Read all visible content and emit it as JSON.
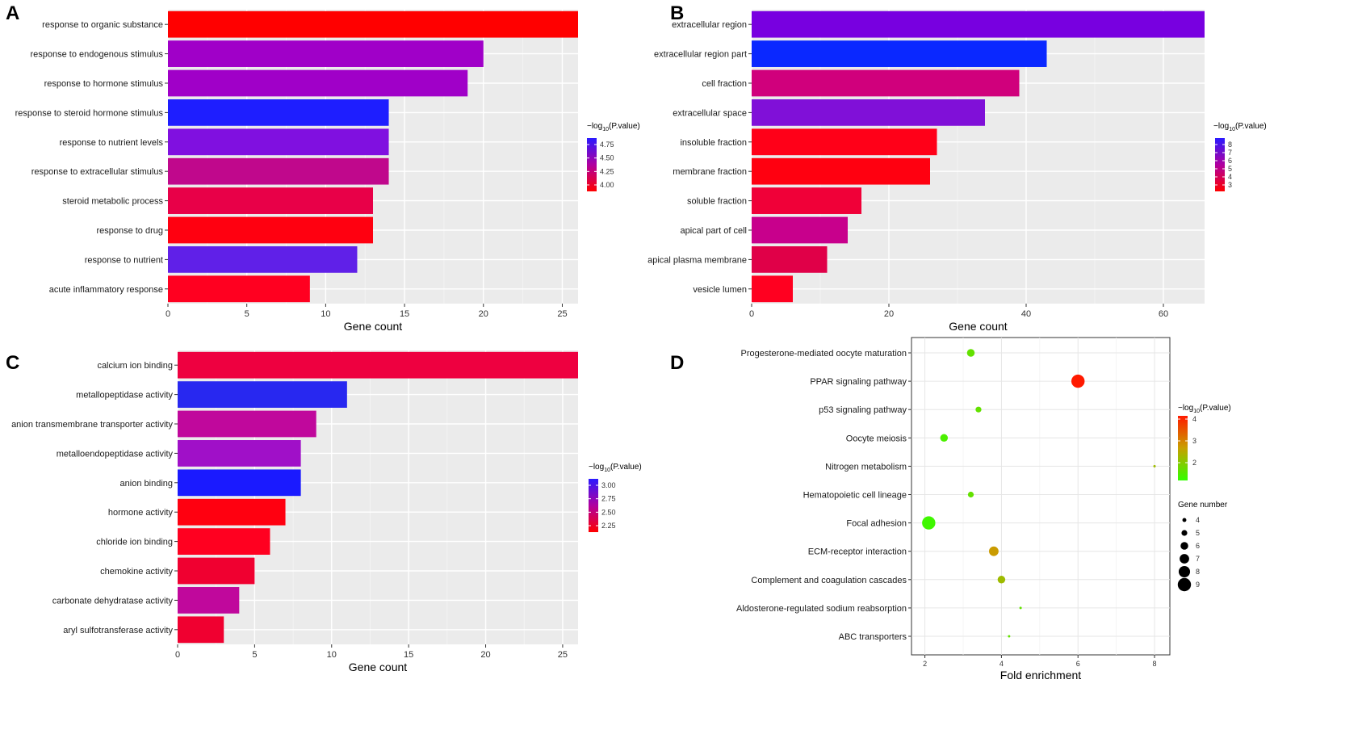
{
  "chart_data": [
    {
      "panel": "A",
      "type": "bar",
      "orientation": "horizontal",
      "categories": [
        "response to organic substance",
        "response to endogenous stimulus",
        "response to hormone stimulus",
        "response to steroid hormone stimulus",
        "response to nutrient levels",
        "response to extracellular stimulus",
        "steroid metabolic process",
        "response to drug",
        "response to nutrient",
        "acute inflammatory response"
      ],
      "values": [
        26,
        20,
        19,
        14,
        14,
        14,
        13,
        13,
        12,
        9
      ],
      "bar_colors": [
        "#ff0000",
        "#a000c8",
        "#a000c8",
        "#1e1eff",
        "#8010e0",
        "#c0088c",
        "#e80048",
        "#ff0010",
        "#6020e8",
        "#ff0020"
      ],
      "xlabel": "Gene count",
      "xticks": [
        0,
        5,
        10,
        15,
        20,
        25
      ],
      "xlim": [
        0,
        26
      ],
      "legend": {
        "title_prefix": "−log",
        "title_sub": "10",
        "title_suffix": "(P.value)",
        "ticks": [
          "4.75",
          "4.50",
          "4.25",
          "4.00"
        ],
        "low_color": "#ff0000",
        "high_color": "#2a1aff"
      }
    },
    {
      "panel": "B",
      "type": "bar",
      "orientation": "horizontal",
      "categories": [
        "extracellular region",
        "extracellular region part",
        "cell fraction",
        "extracellular space",
        "insoluble fraction",
        "membrane fraction",
        "soluble fraction",
        "apical part of cell",
        "apical plasma membrane",
        "vesicle lumen"
      ],
      "values": [
        66,
        43,
        39,
        34,
        27,
        26,
        16,
        14,
        11,
        6
      ],
      "bar_colors": [
        "#7800e0",
        "#0a28ff",
        "#d0007c",
        "#8010d8",
        "#ff0018",
        "#ff0010",
        "#f00038",
        "#c8008c",
        "#e00048",
        "#ff0020"
      ],
      "xlabel": "Gene count",
      "xticks": [
        0,
        20,
        40,
        60
      ],
      "xlim": [
        0,
        66
      ],
      "legend": {
        "title_prefix": "−log",
        "title_sub": "10",
        "title_suffix": "(P.value)",
        "ticks": [
          "8",
          "7",
          "6",
          "5",
          "4",
          "3"
        ],
        "low_color": "#ff0000",
        "high_color": "#2a1aff"
      }
    },
    {
      "panel": "C",
      "type": "bar",
      "orientation": "horizontal",
      "categories": [
        "calcium ion binding",
        "metallopeptidase activity",
        "anion transmembrane transporter activity",
        "metalloendopeptidase activity",
        "anion binding",
        "hormone activity",
        "chloride ion binding",
        "chemokine activity",
        "carbonate dehydratase activity",
        "aryl sulfotransferase activity"
      ],
      "values": [
        26,
        11,
        9,
        8,
        8,
        7,
        6,
        5,
        4,
        3
      ],
      "bar_colors": [
        "#ee0040",
        "#2828f0",
        "#c0089c",
        "#a010c8",
        "#1a1aff",
        "#ff0010",
        "#ff0020",
        "#f00030",
        "#c0089c",
        "#f00030"
      ],
      "xlabel": "Gene count",
      "xticks": [
        0,
        5,
        10,
        15,
        20,
        25
      ],
      "xlim": [
        0,
        26
      ],
      "legend": {
        "title_prefix": "−log",
        "title_sub": "10",
        "title_suffix": "(P.value)",
        "ticks": [
          "3.00",
          "2.75",
          "2.50",
          "2.25"
        ],
        "low_color": "#ff0000",
        "high_color": "#2a1aff"
      }
    },
    {
      "panel": "D",
      "type": "scatter",
      "categories": [
        "Progesterone-mediated oocyte maturation",
        "PPAR signaling pathway",
        "p53 signaling pathway",
        "Oocyte meiosis",
        "Nitrogen metabolism",
        "Hematopoietic cell lineage",
        "Focal adhesion",
        "ECM-receptor interaction",
        "Complement and coagulation cascades",
        "Aldosterone-regulated sodium reabsorption",
        "ABC transporters"
      ],
      "x": [
        3.2,
        6.0,
        3.4,
        2.5,
        8.0,
        3.2,
        2.1,
        3.8,
        4.0,
        4.5,
        4.2
      ],
      "gene_number": [
        6,
        9,
        5,
        6,
        3,
        5,
        9,
        7,
        6,
        3,
        3
      ],
      "neg_log10_p": [
        1.9,
        4.0,
        1.9,
        1.7,
        2.4,
        1.9,
        1.6,
        2.8,
        2.4,
        1.9,
        1.9
      ],
      "xlabel": "Fold enrichment",
      "xticks": [
        2,
        4,
        6,
        8
      ],
      "xlim": [
        1.65,
        8.4
      ],
      "color_legend": {
        "title_prefix": "−log",
        "title_sub": "10",
        "title_suffix": "(P.value)",
        "ticks": [
          "4",
          "3",
          "2"
        ],
        "low_color": "#33ff00",
        "mid_color": "#c8a000",
        "high_color": "#ff1a00"
      },
      "size_legend": {
        "title": "Gene number",
        "labels": [
          "4",
          "5",
          "6",
          "7",
          "8",
          "9"
        ]
      }
    }
  ]
}
